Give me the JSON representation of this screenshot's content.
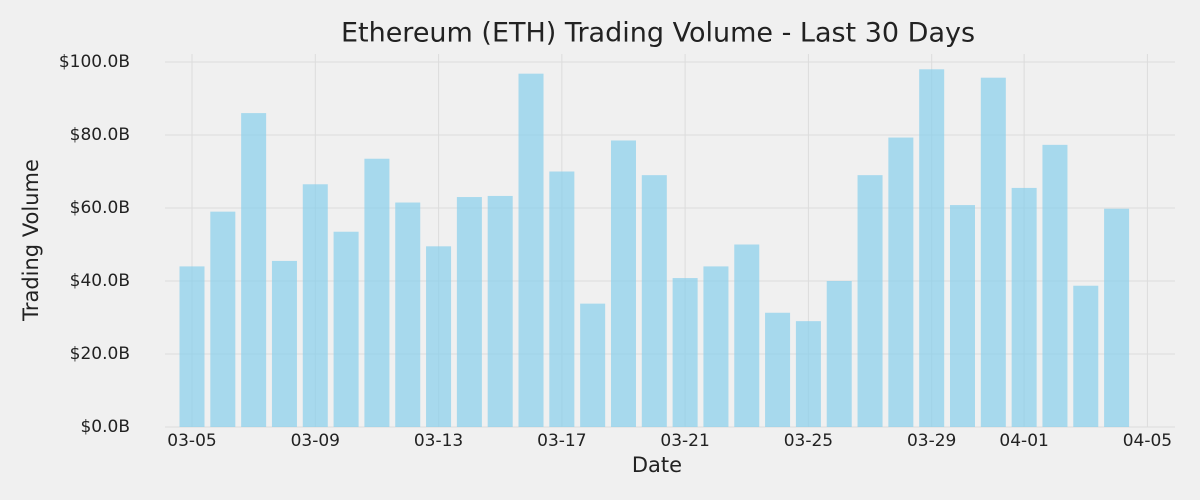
{
  "chart_data": {
    "type": "bar",
    "title": "Ethereum (ETH) Trading Volume - Last 30 Days",
    "xlabel": "Date",
    "ylabel": "Trading Volume",
    "categories": [
      "03-05",
      "03-06",
      "03-07",
      "03-08",
      "03-09",
      "03-10",
      "03-11",
      "03-12",
      "03-13",
      "03-14",
      "03-15",
      "03-16",
      "03-17",
      "03-18",
      "03-19",
      "03-20",
      "03-21",
      "03-22",
      "03-23",
      "03-24",
      "03-25",
      "03-26",
      "03-27",
      "03-28",
      "03-29",
      "03-30",
      "03-31",
      "04-01",
      "04-02",
      "04-03",
      "04-04"
    ],
    "values": [
      44,
      59,
      86,
      45.5,
      66.5,
      53.5,
      73.5,
      61.5,
      49.5,
      63,
      63.3,
      96.8,
      70,
      33.8,
      78.5,
      69,
      40.8,
      44,
      50,
      31.3,
      29,
      40,
      69,
      79.3,
      98,
      60.8,
      95.7,
      65.5,
      77.3,
      38.7,
      59.8
    ],
    "color": "#87ceeb",
    "ylim": [
      0,
      100
    ],
    "yticks": [
      {
        "value": 0,
        "label": "$0.0B"
      },
      {
        "value": 20,
        "label": "$20.0B"
      },
      {
        "value": 40,
        "label": "$40.0B"
      },
      {
        "value": 60,
        "label": "$60.0B"
      },
      {
        "value": 80,
        "label": "$80.0B"
      },
      {
        "value": 100,
        "label": "$100.0B"
      }
    ],
    "xticks": [
      "03-05",
      "03-09",
      "03-13",
      "03-17",
      "03-21",
      "03-25",
      "03-29",
      "04-01",
      "04-05"
    ],
    "grid": true
  }
}
